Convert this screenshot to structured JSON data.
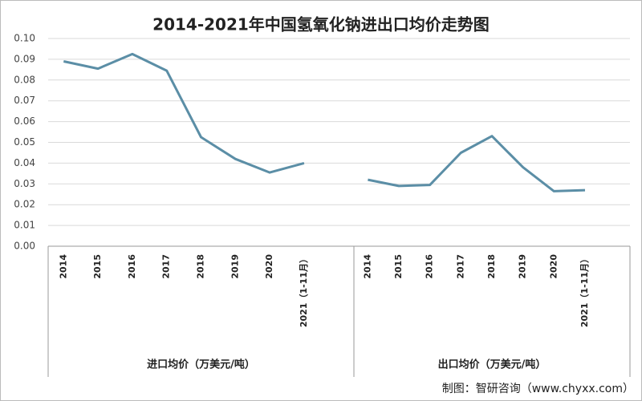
{
  "chart_data": {
    "type": "line",
    "title": "2014-2021年中国氢氧化钠进出口均价走势图",
    "source": "制图：智研咨询（www.chyxx.com）",
    "color": "#5b8ea6",
    "grid": true,
    "ylim": [
      0,
      0.1
    ],
    "yticks": [
      {
        "value": 0,
        "label": "0.00"
      },
      0.01,
      0.02,
      0.03,
      0.04,
      0.05,
      0.06,
      0.07,
      0.08,
      0.09,
      {
        "value": 0.1,
        "label": "0.10"
      }
    ],
    "groups": [
      {
        "label": "进口均价（万美元/吨）",
        "categories": [
          "2014",
          "2015",
          "2016",
          "2017",
          "2018",
          "2019",
          "2020",
          "2021（1-11月）"
        ],
        "values": [
          0.089,
          0.0855,
          0.0925,
          0.0845,
          0.0525,
          0.042,
          0.0355,
          0.04
        ]
      },
      {
        "label": "出口均价（万美元/吨）",
        "categories": [
          "2014",
          "2015",
          "2016",
          "2017",
          "2018",
          "2019",
          "2020",
          "2021（1-11月）"
        ],
        "values": [
          0.032,
          0.029,
          0.0295,
          0.045,
          0.053,
          0.038,
          0.0265,
          0.027
        ]
      }
    ]
  }
}
